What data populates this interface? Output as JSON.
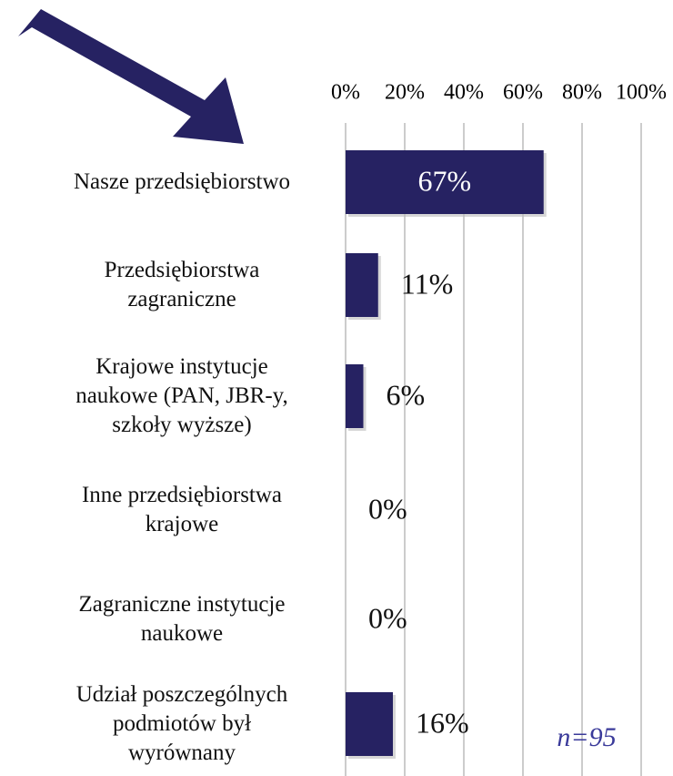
{
  "chart_data": {
    "type": "barh",
    "categories": [
      "Nasze przedsiębiorstwo",
      "Przedsiębiorstwa\nzagraniczne",
      "Krajowe instytucje\nnaukowe (PAN, JBR-y,\nszkoły wyższe)",
      "Inne przedsiębiorstwa\nkrajowe",
      "Zagraniczne instytucje\nnaukowe",
      "Udział poszczególnych\npodmiotów był\nwyrównany"
    ],
    "values": [
      67,
      11,
      6,
      0,
      0,
      16
    ],
    "value_labels": [
      "67%",
      "11%",
      "6%",
      "0%",
      "0%",
      "16%"
    ],
    "color": "#262262",
    "xlim": [
      0,
      100
    ],
    "xticks": [
      {
        "value": 0,
        "label": "0%"
      },
      {
        "value": 20,
        "label": "20%"
      },
      {
        "value": 40,
        "label": "40%"
      },
      {
        "value": 60,
        "label": "60%"
      },
      {
        "value": 80,
        "label": "80%"
      },
      {
        "value": 100,
        "label": "100%"
      }
    ],
    "grid": true,
    "annotation": "n=95"
  }
}
